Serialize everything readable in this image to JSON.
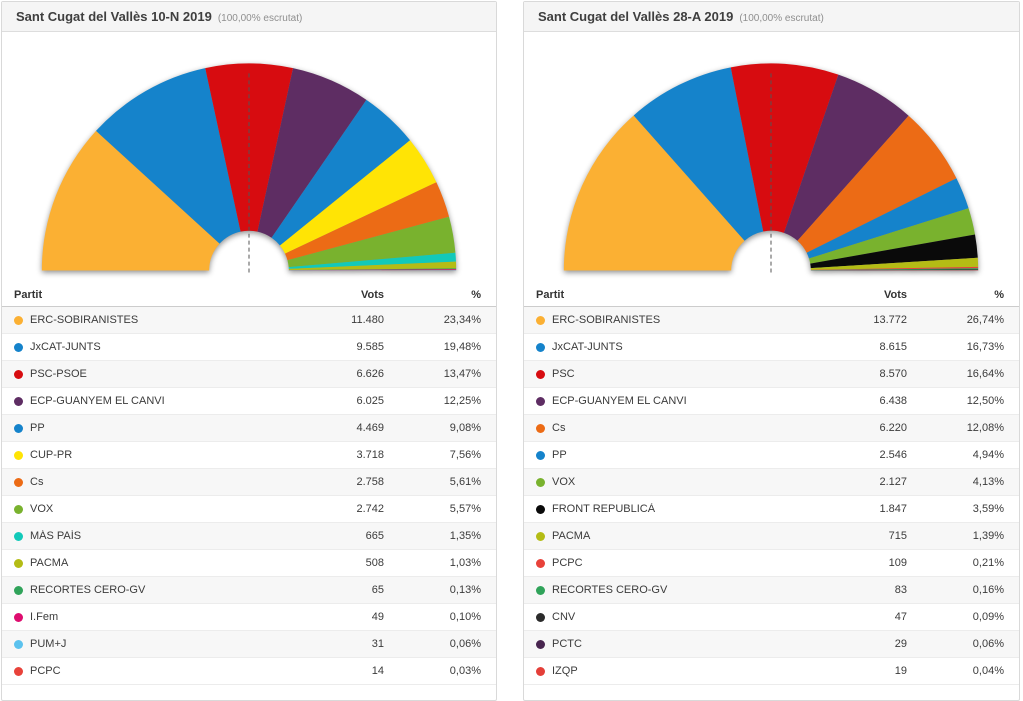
{
  "panels": [
    {
      "title": "Sant Cugat del Vallès 10-N 2019",
      "subtitle": "(100,00% escrutat)",
      "columns": [
        "Partit",
        "Vots",
        "%"
      ],
      "parties": [
        {
          "name": "ERC-SOBIRANISTES",
          "votes": "11.480",
          "pct": "23,34%",
          "color": "#FBB033"
        },
        {
          "name": "JxCAT-JUNTS",
          "votes": "9.585",
          "pct": "19,48%",
          "color": "#1583CB"
        },
        {
          "name": "PSC-PSOE",
          "votes": "6.626",
          "pct": "13,47%",
          "color": "#D70C10"
        },
        {
          "name": "ECP-GUANYEM EL CANVI",
          "votes": "6.025",
          "pct": "12,25%",
          "color": "#5E2D63"
        },
        {
          "name": "PP",
          "votes": "4.469",
          "pct": "9,08%",
          "color": "#1583CB"
        },
        {
          "name": "CUP-PR",
          "votes": "3.718",
          "pct": "7,56%",
          "color": "#FFE405"
        },
        {
          "name": "Cs",
          "votes": "2.758",
          "pct": "5,61%",
          "color": "#EC6B15"
        },
        {
          "name": "VOX",
          "votes": "2.742",
          "pct": "5,57%",
          "color": "#79B22E"
        },
        {
          "name": "MÁS PAÍS",
          "votes": "665",
          "pct": "1,35%",
          "color": "#12C9B9"
        },
        {
          "name": "PACMA",
          "votes": "508",
          "pct": "1,03%",
          "color": "#B4BC15"
        },
        {
          "name": "RECORTES CERO-GV",
          "votes": "65",
          "pct": "0,13%",
          "color": "#30A35A"
        },
        {
          "name": "I.Fem",
          "votes": "49",
          "pct": "0,10%",
          "color": "#DE0D6F"
        },
        {
          "name": "PUM+J",
          "votes": "31",
          "pct": "0,06%",
          "color": "#5BC2EE"
        },
        {
          "name": "PCPC",
          "votes": "14",
          "pct": "0,03%",
          "color": "#E8423A"
        }
      ]
    },
    {
      "title": "Sant Cugat del Vallès 28-A 2019",
      "subtitle": "(100,00% escrutat)",
      "columns": [
        "Partit",
        "Vots",
        "%"
      ],
      "parties": [
        {
          "name": "ERC-SOBIRANISTES",
          "votes": "13.772",
          "pct": "26,74%",
          "color": "#FBB033"
        },
        {
          "name": "JxCAT-JUNTS",
          "votes": "8.615",
          "pct": "16,73%",
          "color": "#1583CB"
        },
        {
          "name": "PSC",
          "votes": "8.570",
          "pct": "16,64%",
          "color": "#D70C10"
        },
        {
          "name": "ECP-GUANYEM EL CANVI",
          "votes": "6.438",
          "pct": "12,50%",
          "color": "#5E2D63"
        },
        {
          "name": "Cs",
          "votes": "6.220",
          "pct": "12,08%",
          "color": "#EC6B15"
        },
        {
          "name": "PP",
          "votes": "2.546",
          "pct": "4,94%",
          "color": "#1583CB"
        },
        {
          "name": "VOX",
          "votes": "2.127",
          "pct": "4,13%",
          "color": "#79B22E"
        },
        {
          "name": "FRONT REPUBLICÀ",
          "votes": "1.847",
          "pct": "3,59%",
          "color": "#0A0A0A"
        },
        {
          "name": "PACMA",
          "votes": "715",
          "pct": "1,39%",
          "color": "#B4BC15"
        },
        {
          "name": "PCPC",
          "votes": "109",
          "pct": "0,21%",
          "color": "#E8423A"
        },
        {
          "name": "RECORTES CERO-GV",
          "votes": "83",
          "pct": "0,16%",
          "color": "#30A35A"
        },
        {
          "name": "CNV",
          "votes": "47",
          "pct": "0,09%",
          "color": "#2B2B2B"
        },
        {
          "name": "PCTC",
          "votes": "29",
          "pct": "0,06%",
          "color": "#48254F"
        },
        {
          "name": "IZQP",
          "votes": "19",
          "pct": "0,04%",
          "color": "#E43F39"
        }
      ]
    }
  ],
  "chart_data": [
    {
      "type": "pie",
      "variant": "half-donut",
      "title": "Sant Cugat del Vallès 10-N 2019",
      "subtitle": "100,00% escrutat",
      "legend_position": "table-below",
      "start_angle_deg": 180,
      "end_angle_deg": 0,
      "inner_radius_ratio": 0.19,
      "majority_marker": "dashed line at 50%",
      "categories": [
        "ERC-SOBIRANISTES",
        "JxCAT-JUNTS",
        "PSC-PSOE",
        "ECP-GUANYEM EL CANVI",
        "PP",
        "CUP-PR",
        "Cs",
        "VOX",
        "MÁS PAÍS",
        "PACMA",
        "RECORTES CERO-GV",
        "I.Fem",
        "PUM+J",
        "PCPC"
      ],
      "values": [
        11480,
        9585,
        6626,
        6025,
        4469,
        3718,
        2758,
        2742,
        665,
        508,
        65,
        49,
        31,
        14
      ],
      "percent": [
        23.34,
        19.48,
        13.47,
        12.25,
        9.08,
        7.56,
        5.61,
        5.57,
        1.35,
        1.03,
        0.13,
        0.1,
        0.06,
        0.03
      ],
      "colors": [
        "#FBB033",
        "#1583CB",
        "#D70C10",
        "#5E2D63",
        "#1583CB",
        "#FFE405",
        "#EC6B15",
        "#79B22E",
        "#12C9B9",
        "#B4BC15",
        "#30A35A",
        "#DE0D6F",
        "#5BC2EE",
        "#E8423A"
      ]
    },
    {
      "type": "pie",
      "variant": "half-donut",
      "title": "Sant Cugat del Vallès 28-A 2019",
      "subtitle": "100,00% escrutat",
      "legend_position": "table-below",
      "start_angle_deg": 180,
      "end_angle_deg": 0,
      "inner_radius_ratio": 0.19,
      "majority_marker": "dashed line at 50%",
      "categories": [
        "ERC-SOBIRANISTES",
        "JxCAT-JUNTS",
        "PSC",
        "ECP-GUANYEM EL CANVI",
        "Cs",
        "PP",
        "VOX",
        "FRONT REPUBLICÀ",
        "PACMA",
        "PCPC",
        "RECORTES CERO-GV",
        "CNV",
        "PCTC",
        "IZQP"
      ],
      "values": [
        13772,
        8615,
        8570,
        6438,
        6220,
        2546,
        2127,
        1847,
        715,
        109,
        83,
        47,
        29,
        19
      ],
      "percent": [
        26.74,
        16.73,
        16.64,
        12.5,
        12.08,
        4.94,
        4.13,
        3.59,
        1.39,
        0.21,
        0.16,
        0.09,
        0.06,
        0.04
      ],
      "colors": [
        "#FBB033",
        "#1583CB",
        "#D70C10",
        "#5E2D63",
        "#EC6B15",
        "#1583CB",
        "#79B22E",
        "#0A0A0A",
        "#B4BC15",
        "#E8423A",
        "#30A35A",
        "#2B2B2B",
        "#48254F",
        "#E43F39"
      ]
    }
  ]
}
